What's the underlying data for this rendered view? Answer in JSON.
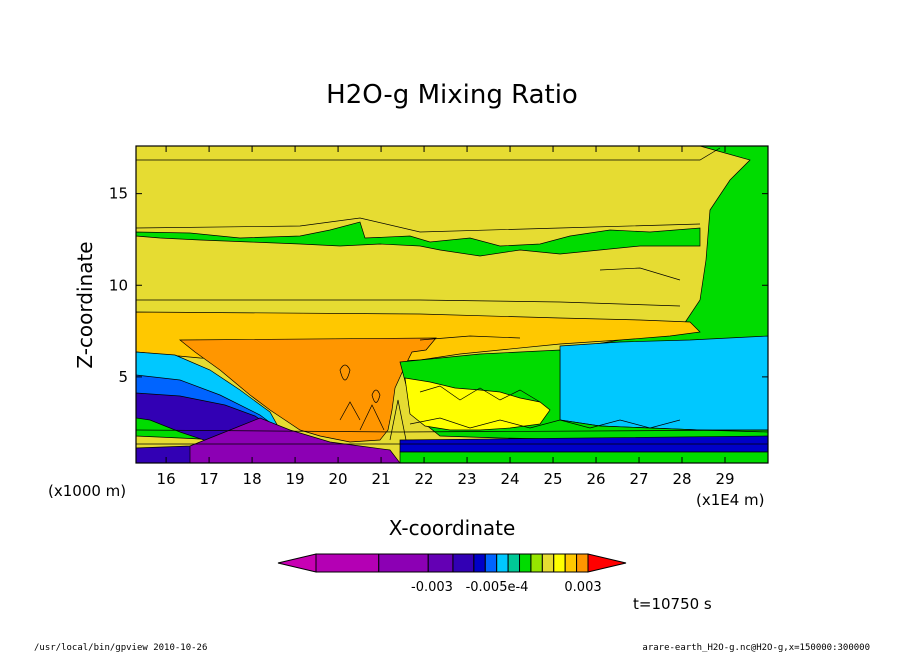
{
  "chart_data": {
    "type": "heatmap",
    "title": "H2O-g Mixing Ratio",
    "xlabel": "X-coordinate",
    "ylabel": "Z-coordinate",
    "x_unit": "(x1E4 m)",
    "y_unit": "(x1000 m)",
    "x_ticks": [
      "16",
      "17",
      "18",
      "19",
      "20",
      "21",
      "22",
      "23",
      "24",
      "25",
      "26",
      "27",
      "28",
      "29"
    ],
    "y_ticks": [
      "5",
      "10",
      "15"
    ],
    "xlim": [
      15.3,
      30.0
    ],
    "ylim": [
      0.3,
      17.6
    ],
    "colorbar": {
      "colors": [
        "#c800b4",
        "#b400b4",
        "#8c00b4",
        "#6400b4",
        "#3200b4",
        "#0000c8",
        "#0064ff",
        "#00c8ff",
        "#00c896",
        "#00dc00",
        "#96e600",
        "#e6dc32",
        "#ffff00",
        "#ffc800",
        "#ff9600",
        "#ff0000"
      ],
      "labels": [
        "-0.003",
        "-0.005e-4",
        "0.003"
      ]
    },
    "annotation": "t=10750 s"
  },
  "footer": {
    "left": "/usr/local/bin/gpview  2010-10-26",
    "right": "arare-earth_H2O-g.nc@H2O-g,x=150000:300000"
  }
}
